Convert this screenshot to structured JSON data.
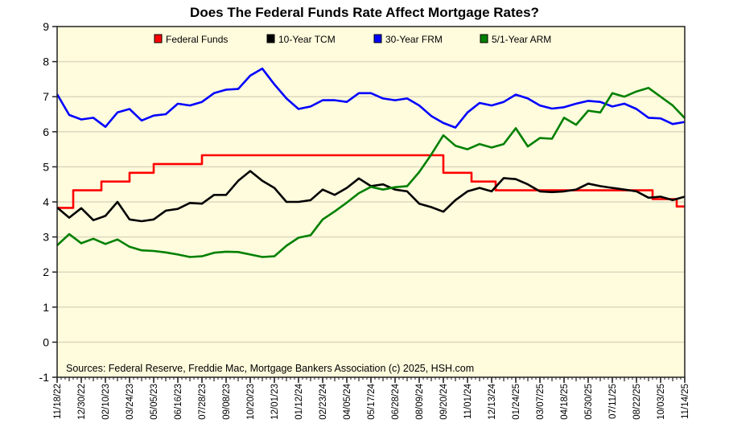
{
  "chart_data": {
    "type": "line",
    "title": "Does The Federal Funds Rate Affect Mortgage Rates?",
    "source_note": "Sources: Federal Reserve, Freddie Mac, Mortgage Bankers Association (c) 2025, HSH.com",
    "ylim": [
      -1,
      9
    ],
    "yticks": [
      "9",
      "8",
      "7",
      "6",
      "5",
      "4",
      "3",
      "2",
      "1",
      "0",
      "-1"
    ],
    "xlim": [
      "11/18/22",
      "11/14/25"
    ],
    "xtick_labels": [
      "11/18/22",
      "12/30/22",
      "02/10/23",
      "03/24/23",
      "05/05/23",
      "06/16/23",
      "07/28/23",
      "09/08/23",
      "10/20/23",
      "12/01/23",
      "01/12/24",
      "02/23/24",
      "04/05/24",
      "05/17/24",
      "06/28/24",
      "08/09/24",
      "09/20/24",
      "11/01/24",
      "12/13/24",
      "01/24/25",
      "03/07/25",
      "04/18/25",
      "05/30/25",
      "07/11/25",
      "08/22/25",
      "10/03/25",
      "11/14/25"
    ],
    "grid": "horizontal",
    "legend_position": "top",
    "background_color": "#FFFBDD",
    "x": [
      "11/18/22",
      "12/09/22",
      "12/30/22",
      "01/20/23",
      "02/10/23",
      "03/03/23",
      "03/24/23",
      "04/14/23",
      "05/05/23",
      "05/26/23",
      "06/16/23",
      "07/07/23",
      "07/28/23",
      "08/18/23",
      "09/08/23",
      "09/29/23",
      "10/20/23",
      "11/10/23",
      "12/01/23",
      "12/22/23",
      "01/12/24",
      "02/02/24",
      "02/23/24",
      "03/15/24",
      "04/05/24",
      "04/26/24",
      "05/17/24",
      "06/07/24",
      "06/28/24",
      "07/19/24",
      "08/09/24",
      "08/30/24",
      "09/20/24",
      "10/11/24",
      "11/01/24",
      "11/22/24",
      "12/13/24",
      "01/03/25",
      "01/24/25",
      "02/14/25",
      "03/07/25",
      "03/28/25",
      "04/18/25",
      "05/09/25",
      "05/30/25",
      "06/20/25",
      "07/11/25",
      "08/01/25",
      "08/22/25",
      "09/12/25",
      "10/03/25",
      "10/24/25",
      "11/14/25"
    ],
    "series": [
      {
        "name": "Federal Funds",
        "color": "#FF0000",
        "step": true,
        "points": [
          {
            "date": "11/18/22",
            "value": 3.83
          },
          {
            "date": "12/16/22",
            "value": 4.33
          },
          {
            "date": "02/03/23",
            "value": 4.58
          },
          {
            "date": "03/24/23",
            "value": 4.83
          },
          {
            "date": "05/05/23",
            "value": 5.08
          },
          {
            "date": "07/28/23",
            "value": 5.33
          },
          {
            "date": "09/20/24",
            "value": 4.83
          },
          {
            "date": "11/08/24",
            "value": 4.58
          },
          {
            "date": "12/20/24",
            "value": 4.33
          },
          {
            "date": "09/19/25",
            "value": 4.08
          },
          {
            "date": "10/31/25",
            "value": 3.87
          },
          {
            "date": "11/14/25",
            "value": 3.87
          }
        ]
      },
      {
        "name": "10-Year TCM",
        "color": "#000000",
        "values": [
          3.84,
          3.55,
          3.82,
          3.48,
          3.6,
          4.0,
          3.5,
          3.45,
          3.5,
          3.75,
          3.8,
          3.97,
          3.95,
          4.2,
          4.2,
          4.6,
          4.88,
          4.6,
          4.4,
          4.0,
          4.0,
          4.05,
          4.35,
          4.2,
          4.4,
          4.67,
          4.45,
          4.5,
          4.35,
          4.3,
          3.95,
          3.85,
          3.72,
          4.05,
          4.3,
          4.4,
          4.3,
          4.68,
          4.65,
          4.5,
          4.3,
          4.28,
          4.3,
          4.35,
          4.52,
          4.45,
          4.4,
          4.35,
          4.3,
          4.12,
          4.15,
          4.05,
          4.15
        ]
      },
      {
        "name": "30-Year FRM",
        "color": "#0000FF",
        "values": [
          7.07,
          6.48,
          6.35,
          6.4,
          6.14,
          6.55,
          6.65,
          6.32,
          6.46,
          6.5,
          6.8,
          6.75,
          6.85,
          7.1,
          7.2,
          7.22,
          7.6,
          7.8,
          7.35,
          6.95,
          6.65,
          6.72,
          6.9,
          6.9,
          6.85,
          7.1,
          7.1,
          6.95,
          6.9,
          6.95,
          6.75,
          6.45,
          6.25,
          6.12,
          6.55,
          6.82,
          6.75,
          6.85,
          7.06,
          6.95,
          6.75,
          6.66,
          6.7,
          6.8,
          6.88,
          6.85,
          6.72,
          6.8,
          6.65,
          6.4,
          6.38,
          6.22,
          6.28
        ]
      },
      {
        "name": "5/1-Year ARM",
        "color": "#008000",
        "values": [
          2.76,
          3.08,
          2.82,
          2.95,
          2.8,
          2.93,
          2.72,
          2.62,
          2.6,
          2.56,
          2.5,
          2.43,
          2.45,
          2.55,
          2.58,
          2.57,
          2.5,
          2.43,
          2.45,
          2.75,
          2.98,
          3.05,
          3.5,
          3.73,
          3.98,
          4.25,
          4.43,
          4.35,
          4.42,
          4.45,
          4.85,
          5.35,
          5.9,
          5.6,
          5.5,
          5.65,
          5.55,
          5.65,
          6.1,
          5.58,
          5.82,
          5.8,
          6.4,
          6.2,
          6.6,
          6.55,
          7.1,
          7.0,
          7.15,
          7.25,
          7.0,
          6.75,
          6.39
        ]
      }
    ]
  }
}
